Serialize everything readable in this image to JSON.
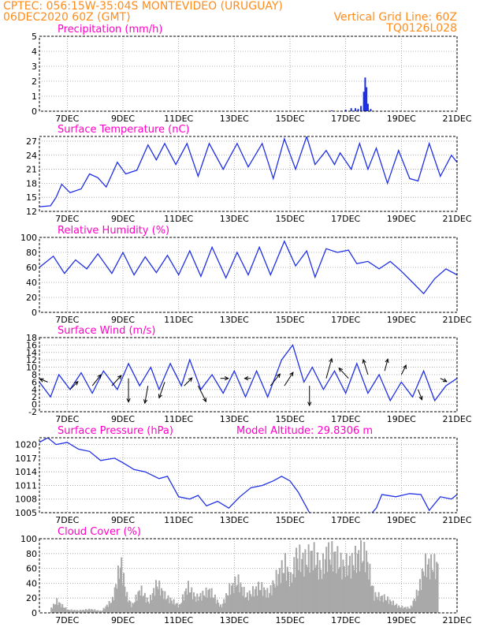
{
  "header": {
    "line1_left": "CPTEC:   056:15W-35:04S   MONTEVIDEO (URUGUAY)",
    "line2_left": "06DEC2020 60Z (GMT)",
    "line2_right": "Vertical Grid Line: 60Z",
    "line3_right": "TQ0126L028"
  },
  "colors": {
    "header": "#ff8c1a",
    "title": "#ff00c8",
    "series": "#1f2fe6",
    "cloud": "#a9a9a9",
    "precip": "#1a2fe6"
  },
  "chart_data": [
    {
      "type": "bar",
      "title": "Precipitation (mm/h)",
      "xticks": [
        "7DEC",
        "9DEC",
        "11DEC",
        "13DEC",
        "15DEC",
        "17DEC",
        "19DEC",
        "21DEC"
      ],
      "xlim": [
        6.0,
        21.0
      ],
      "ylim": [
        0,
        5
      ],
      "yticks": [
        0,
        1,
        2,
        3,
        4,
        5
      ],
      "grid": true,
      "points": [
        [
          16.5,
          0.05
        ],
        [
          17.0,
          0.1
        ],
        [
          17.2,
          0.2
        ],
        [
          17.35,
          0.2
        ],
        [
          17.45,
          0.15
        ],
        [
          17.55,
          0.35
        ],
        [
          17.65,
          1.3
        ],
        [
          17.7,
          2.25
        ],
        [
          17.75,
          1.6
        ],
        [
          17.8,
          0.5
        ],
        [
          17.9,
          0.15
        ]
      ]
    },
    {
      "type": "line",
      "title": "Surface Temperature (nC)",
      "xticks": [
        "7DEC",
        "9DEC",
        "11DEC",
        "13DEC",
        "15DEC",
        "17DEC",
        "19DEC",
        "21DEC"
      ],
      "xlim": [
        6.0,
        21.0
      ],
      "ylim": [
        12,
        28
      ],
      "yticks": [
        12,
        15,
        18,
        21,
        24,
        27
      ],
      "grid": true,
      "points": [
        [
          6.0,
          13
        ],
        [
          6.4,
          13.2
        ],
        [
          6.6,
          15
        ],
        [
          6.8,
          17.8
        ],
        [
          7.1,
          16
        ],
        [
          7.5,
          16.8
        ],
        [
          7.8,
          20
        ],
        [
          8.1,
          19.2
        ],
        [
          8.4,
          17.2
        ],
        [
          8.8,
          22.5
        ],
        [
          9.1,
          20
        ],
        [
          9.5,
          20.8
        ],
        [
          9.9,
          26.2
        ],
        [
          10.2,
          23
        ],
        [
          10.5,
          26.5
        ],
        [
          10.9,
          22
        ],
        [
          11.3,
          26.5
        ],
        [
          11.7,
          19.5
        ],
        [
          12.1,
          26.5
        ],
        [
          12.6,
          21
        ],
        [
          13.1,
          26.5
        ],
        [
          13.5,
          21.5
        ],
        [
          14.0,
          26.5
        ],
        [
          14.4,
          19
        ],
        [
          14.8,
          27.5
        ],
        [
          15.2,
          21
        ],
        [
          15.6,
          28
        ],
        [
          15.9,
          22
        ],
        [
          16.3,
          25
        ],
        [
          16.6,
          22
        ],
        [
          16.8,
          24.5
        ],
        [
          17.2,
          21
        ],
        [
          17.5,
          26.5
        ],
        [
          17.8,
          21
        ],
        [
          18.1,
          25.5
        ],
        [
          18.5,
          18
        ],
        [
          18.9,
          25
        ],
        [
          19.3,
          19
        ],
        [
          19.6,
          18.5
        ],
        [
          20.0,
          26.5
        ],
        [
          20.4,
          19.5
        ],
        [
          20.8,
          24
        ],
        [
          21.0,
          22.5
        ]
      ]
    },
    {
      "type": "line",
      "title": "Relative Humidity (%)",
      "xticks": [
        "7DEC",
        "9DEC",
        "11DEC",
        "13DEC",
        "15DEC",
        "17DEC",
        "19DEC",
        "21DEC"
      ],
      "xlim": [
        6.0,
        21.0
      ],
      "ylim": [
        0,
        100
      ],
      "yticks": [
        0,
        20,
        40,
        60,
        80,
        100
      ],
      "grid": true,
      "points": [
        [
          6.0,
          60
        ],
        [
          6.5,
          75
        ],
        [
          6.9,
          52
        ],
        [
          7.3,
          70
        ],
        [
          7.7,
          58
        ],
        [
          8.1,
          78
        ],
        [
          8.6,
          52
        ],
        [
          9.0,
          80
        ],
        [
          9.4,
          50
        ],
        [
          9.8,
          74
        ],
        [
          10.2,
          53
        ],
        [
          10.6,
          76
        ],
        [
          11.0,
          50
        ],
        [
          11.4,
          82
        ],
        [
          11.8,
          48
        ],
        [
          12.2,
          87
        ],
        [
          12.7,
          46
        ],
        [
          13.1,
          80
        ],
        [
          13.5,
          50
        ],
        [
          13.9,
          87
        ],
        [
          14.3,
          50
        ],
        [
          14.8,
          95
        ],
        [
          15.2,
          62
        ],
        [
          15.6,
          82
        ],
        [
          15.9,
          47
        ],
        [
          16.3,
          85
        ],
        [
          16.7,
          80
        ],
        [
          17.1,
          83
        ],
        [
          17.4,
          65
        ],
        [
          17.8,
          68
        ],
        [
          18.2,
          58
        ],
        [
          18.6,
          68
        ],
        [
          19.0,
          55
        ],
        [
          19.4,
          40
        ],
        [
          19.8,
          25
        ],
        [
          20.2,
          45
        ],
        [
          20.6,
          58
        ],
        [
          21.0,
          50
        ]
      ]
    },
    {
      "type": "line",
      "title": "Surface Wind (m/s)",
      "xticks": [
        "7DEC",
        "9DEC",
        "11DEC",
        "13DEC",
        "15DEC",
        "17DEC",
        "19DEC",
        "21DEC"
      ],
      "xlim": [
        6.0,
        21.0
      ],
      "ylim": [
        -2,
        18
      ],
      "yticks": [
        -2,
        0,
        2,
        4,
        6,
        8,
        10,
        12,
        14,
        16,
        18
      ],
      "grid": true,
      "points": [
        [
          6.0,
          6
        ],
        [
          6.4,
          2
        ],
        [
          6.7,
          8
        ],
        [
          7.1,
          4
        ],
        [
          7.5,
          8.5
        ],
        [
          7.9,
          3
        ],
        [
          8.3,
          9
        ],
        [
          8.8,
          4
        ],
        [
          9.2,
          11
        ],
        [
          9.6,
          5
        ],
        [
          10.0,
          10
        ],
        [
          10.3,
          4
        ],
        [
          10.7,
          11
        ],
        [
          11.1,
          5
        ],
        [
          11.4,
          12
        ],
        [
          11.8,
          4
        ],
        [
          12.2,
          8
        ],
        [
          12.6,
          3
        ],
        [
          13.0,
          9
        ],
        [
          13.4,
          2
        ],
        [
          13.8,
          9
        ],
        [
          14.2,
          2
        ],
        [
          14.7,
          12
        ],
        [
          15.1,
          16
        ],
        [
          15.5,
          6
        ],
        [
          15.8,
          10
        ],
        [
          16.2,
          4
        ],
        [
          16.6,
          9
        ],
        [
          17.0,
          3
        ],
        [
          17.4,
          11
        ],
        [
          17.8,
          3
        ],
        [
          18.2,
          8
        ],
        [
          18.6,
          1
        ],
        [
          19.0,
          6
        ],
        [
          19.4,
          2
        ],
        [
          19.8,
          9
        ],
        [
          20.2,
          1
        ],
        [
          20.6,
          5
        ],
        [
          21.0,
          7
        ]
      ],
      "vectors": [
        [
          6.3,
          6,
          -1.0,
          0.4
        ],
        [
          7.1,
          4,
          1.0,
          1.0
        ],
        [
          7.9,
          5,
          1.1,
          1.4
        ],
        [
          8.6,
          5,
          1.2,
          1.3
        ],
        [
          9.2,
          7,
          0,
          -3
        ],
        [
          9.9,
          5,
          -0.4,
          -2.2
        ],
        [
          10.5,
          6,
          -0.7,
          -2
        ],
        [
          11.2,
          5,
          1,
          1
        ],
        [
          11.7,
          5,
          1,
          -2
        ],
        [
          12.5,
          7,
          1,
          0
        ],
        [
          13.6,
          7,
          -0.8,
          0
        ],
        [
          14.3,
          5,
          1.2,
          1.5
        ],
        [
          14.8,
          5,
          1.1,
          1.7
        ],
        [
          15.7,
          5,
          0,
          -2.5
        ],
        [
          16.3,
          7,
          0.7,
          2.5
        ],
        [
          17.1,
          7,
          -1.2,
          1.3
        ],
        [
          17.8,
          8,
          -0.6,
          1.9
        ],
        [
          18.4,
          9,
          0.4,
          1.5
        ],
        [
          19.0,
          8,
          0.6,
          1.2
        ],
        [
          19.6,
          4,
          0.5,
          -1.3
        ],
        [
          20.4,
          7,
          0.8,
          -0.4
        ]
      ]
    },
    {
      "type": "line",
      "title": "Surface Pressure (hPa)",
      "annotation": "Model Altitude: 29.8306 m",
      "xticks": [
        "7DEC",
        "9DEC",
        "11DEC",
        "13DEC",
        "15DEC",
        "17DEC",
        "19DEC",
        "21DEC"
      ],
      "xlim": [
        6.0,
        21.0
      ],
      "ylim": [
        1005,
        1021.5
      ],
      "yticks": [
        1005,
        1008,
        1011,
        1014,
        1017,
        1020
      ],
      "grid": true,
      "points": [
        [
          6.0,
          1020.5
        ],
        [
          6.3,
          1021.5
        ],
        [
          6.6,
          1020
        ],
        [
          7.0,
          1020.5
        ],
        [
          7.4,
          1019
        ],
        [
          7.8,
          1018.5
        ],
        [
          8.2,
          1016.5
        ],
        [
          8.7,
          1017
        ],
        [
          9.0,
          1016
        ],
        [
          9.4,
          1014.5
        ],
        [
          9.8,
          1014
        ],
        [
          10.3,
          1012.5
        ],
        [
          10.6,
          1013
        ],
        [
          11.0,
          1008.5
        ],
        [
          11.4,
          1008
        ],
        [
          11.7,
          1008.8
        ],
        [
          12.0,
          1006.5
        ],
        [
          12.4,
          1007.5
        ],
        [
          12.8,
          1006
        ],
        [
          13.2,
          1008.5
        ],
        [
          13.6,
          1010.5
        ],
        [
          14.0,
          1011
        ],
        [
          14.4,
          1012
        ],
        [
          14.7,
          1013
        ],
        [
          15.0,
          1012
        ],
        [
          15.3,
          1009.5
        ],
        [
          15.7,
          1005
        ],
        [
          16.0,
          1004
        ],
        [
          16.6,
          1003
        ],
        [
          17.2,
          1003
        ],
        [
          17.8,
          1004
        ],
        [
          18.1,
          1006
        ],
        [
          18.3,
          1009
        ],
        [
          18.8,
          1008.5
        ],
        [
          19.3,
          1009.2
        ],
        [
          19.7,
          1009
        ],
        [
          20.0,
          1005.5
        ],
        [
          20.4,
          1008.5
        ],
        [
          20.8,
          1008
        ],
        [
          21.0,
          1009
        ]
      ]
    },
    {
      "type": "bar",
      "title": "Cloud Cover (%)",
      "xticks": [
        "7DEC",
        "9DEC",
        "11DEC",
        "13DEC",
        "15DEC",
        "17DEC",
        "19DEC",
        "21DEC"
      ],
      "xlim": [
        6.0,
        21.0
      ],
      "ylim": [
        0,
        100
      ],
      "yticks": [
        0,
        20,
        40,
        60,
        80,
        100
      ],
      "grid": true,
      "points": [
        [
          6.4,
          8
        ],
        [
          6.6,
          20
        ],
        [
          6.8,
          12
        ],
        [
          7.0,
          5
        ],
        [
          7.4,
          4
        ],
        [
          7.8,
          6
        ],
        [
          8.2,
          3
        ],
        [
          8.6,
          22
        ],
        [
          8.9,
          85
        ],
        [
          9.1,
          30
        ],
        [
          9.3,
          12
        ],
        [
          9.6,
          40
        ],
        [
          9.9,
          18
        ],
        [
          10.2,
          50
        ],
        [
          10.5,
          28
        ],
        [
          11.0,
          12
        ],
        [
          11.3,
          45
        ],
        [
          11.6,
          25
        ],
        [
          12.1,
          38
        ],
        [
          12.5,
          10
        ],
        [
          12.8,
          40
        ],
        [
          13.1,
          55
        ],
        [
          13.4,
          28
        ],
        [
          13.9,
          45
        ],
        [
          14.2,
          32
        ],
        [
          14.5,
          60
        ],
        [
          14.8,
          82
        ],
        [
          15.0,
          55
        ],
        [
          15.2,
          95
        ],
        [
          15.5,
          88
        ],
        [
          15.8,
          100
        ],
        [
          16.1,
          72
        ],
        [
          16.3,
          100
        ],
        [
          16.6,
          96
        ],
        [
          16.9,
          78
        ],
        [
          17.2,
          85
        ],
        [
          17.5,
          100
        ],
        [
          17.7,
          98
        ],
        [
          18.0,
          30
        ],
        [
          18.4,
          25
        ],
        [
          18.9,
          10
        ],
        [
          19.3,
          8
        ],
        [
          19.6,
          40
        ],
        [
          19.8,
          80
        ],
        [
          20.1,
          82
        ],
        [
          20.3,
          78
        ]
      ]
    }
  ]
}
